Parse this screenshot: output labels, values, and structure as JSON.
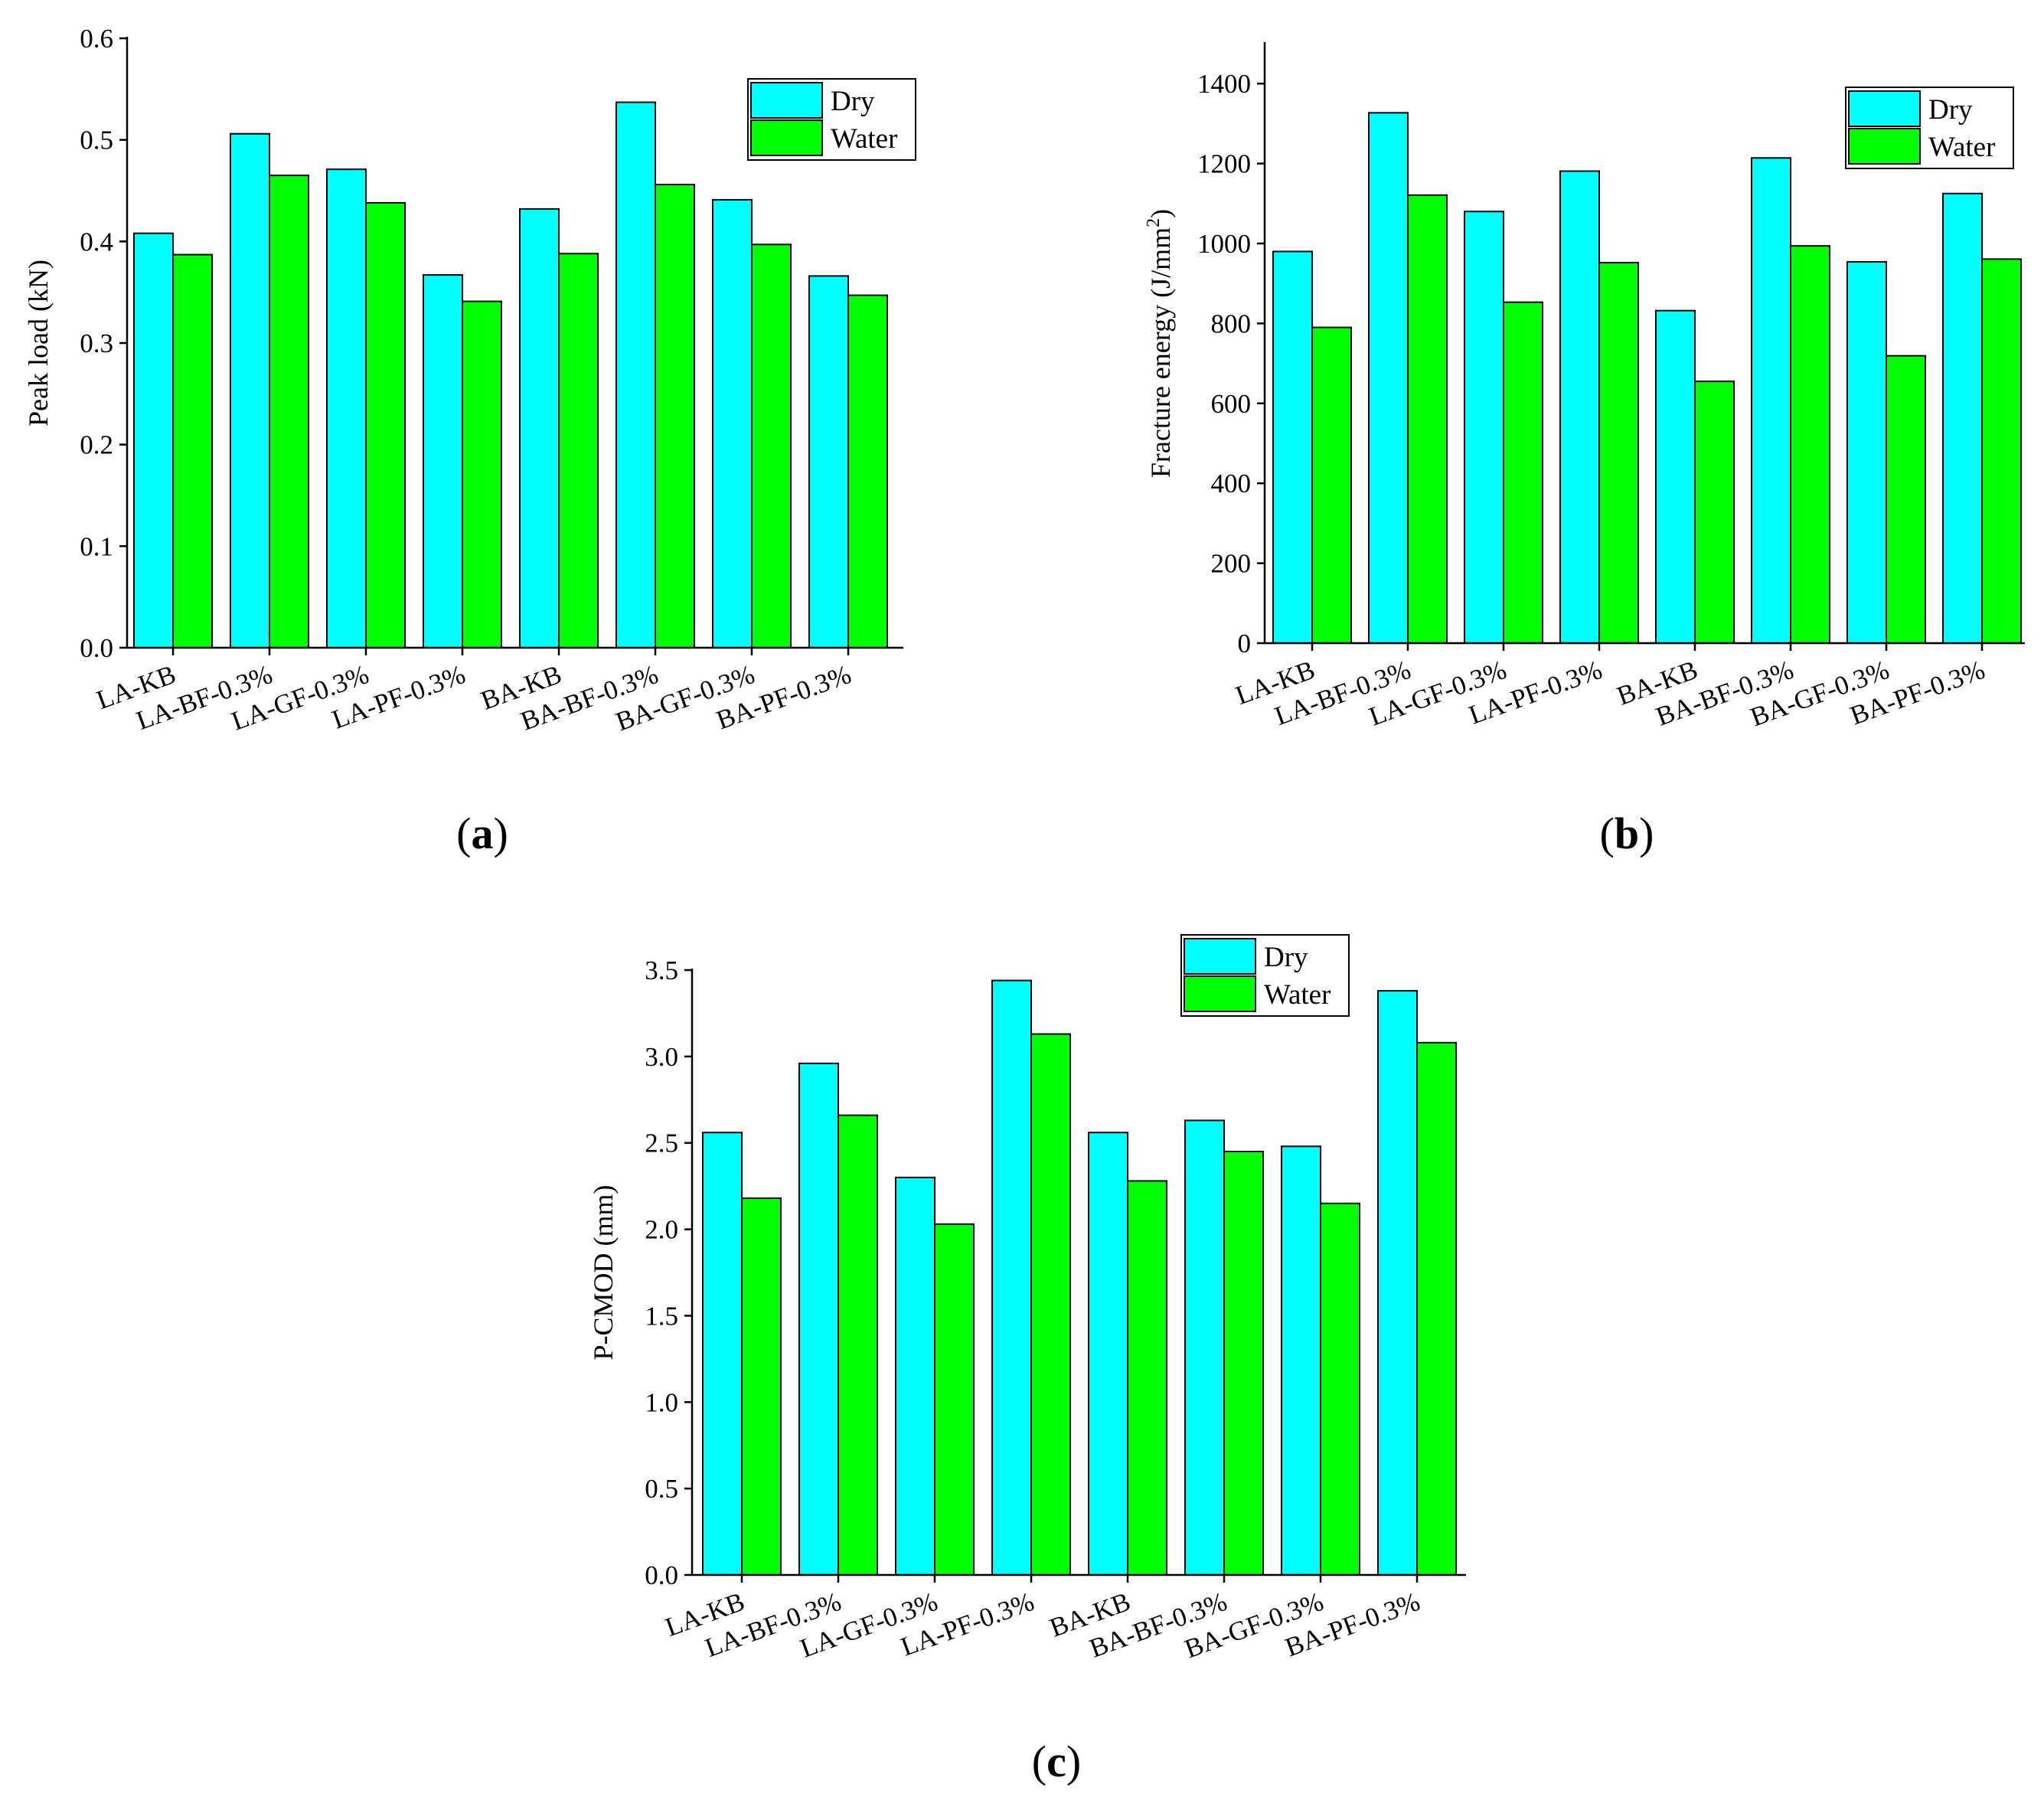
{
  "chart_data": [
    {
      "type": "bar",
      "panel": "a",
      "ylabel": "Peak load (kN)",
      "ylim": [
        0,
        0.6
      ],
      "yticks": [
        0.0,
        0.1,
        0.2,
        0.3,
        0.4,
        0.5,
        0.6
      ],
      "ytick_labels": [
        "0.0",
        "0.1",
        "0.2",
        "0.3",
        "0.4",
        "0.5",
        "0.6"
      ],
      "categories": [
        "LA-KB",
        "LA-BF-0.3%",
        "LA-GF-0.3%",
        "LA-PF-0.3%",
        "BA-KB",
        "BA-BF-0.3%",
        "BA-GF-0.3%",
        "BA-PF-0.3%"
      ],
      "series": [
        {
          "name": "Dry",
          "color": "#00FFFF",
          "values": [
            0.408,
            0.506,
            0.471,
            0.367,
            0.432,
            0.537,
            0.441,
            0.366
          ]
        },
        {
          "name": "Water",
          "color": "#00FF00",
          "values": [
            0.387,
            0.465,
            0.438,
            0.341,
            0.388,
            0.456,
            0.397,
            0.347
          ]
        }
      ],
      "legend": "top-right",
      "grid": false
    },
    {
      "type": "bar",
      "panel": "b",
      "ylabel": "Fracture energy (J/mm²)",
      "ylim": [
        0,
        1500
      ],
      "yticks": [
        0,
        200,
        400,
        600,
        800,
        1000,
        1200,
        1400
      ],
      "ytick_labels": [
        "0",
        "200",
        "400",
        "600",
        "800",
        "1000",
        "1200",
        "1400"
      ],
      "categories": [
        "LA-KB",
        "LA-BF-0.3%",
        "LA-GF-0.3%",
        "LA-PF-0.3%",
        "BA-KB",
        "BA-BF-0.3%",
        "BA-GF-0.3%",
        "BA-PF-0.3%"
      ],
      "series": [
        {
          "name": "Dry",
          "color": "#00FFFF",
          "values": [
            980,
            1327,
            1080,
            1181,
            832,
            1214,
            954,
            1125
          ]
        },
        {
          "name": "Water",
          "color": "#00FF00",
          "values": [
            790,
            1121,
            853,
            952,
            655,
            994,
            719,
            961
          ]
        }
      ],
      "legend": "top-right",
      "grid": false
    },
    {
      "type": "bar",
      "panel": "c",
      "ylabel": "P-CMOD (mm)",
      "ylim": [
        0,
        3.5
      ],
      "yticks": [
        0.0,
        0.5,
        1.0,
        1.5,
        2.0,
        2.5,
        3.0,
        3.5
      ],
      "ytick_labels": [
        "0.0",
        "0.5",
        "1.0",
        "1.5",
        "2.0",
        "2.5",
        "3.0",
        "3.5"
      ],
      "categories": [
        "LA-KB",
        "LA-BF-0.3%",
        "LA-GF-0.3%",
        "LA-PF-0.3%",
        "BA-KB",
        "BA-BF-0.3%",
        "BA-GF-0.3%",
        "BA-PF-0.3%"
      ],
      "series": [
        {
          "name": "Dry",
          "color": "#00FFFF",
          "values": [
            2.56,
            2.96,
            2.3,
            3.44,
            2.56,
            2.63,
            2.48,
            3.38
          ]
        },
        {
          "name": "Water",
          "color": "#00FF00",
          "values": [
            2.18,
            2.66,
            2.03,
            3.13,
            2.28,
            2.45,
            2.15,
            3.08
          ]
        }
      ],
      "legend": "top-right",
      "grid": false
    }
  ],
  "panel_labels": {
    "a": {
      "open": "(",
      "letter": "a",
      "close": ")"
    },
    "b": {
      "open": "(",
      "letter": "b",
      "close": ")"
    },
    "c": {
      "open": "(",
      "letter": "c",
      "close": ")"
    }
  }
}
